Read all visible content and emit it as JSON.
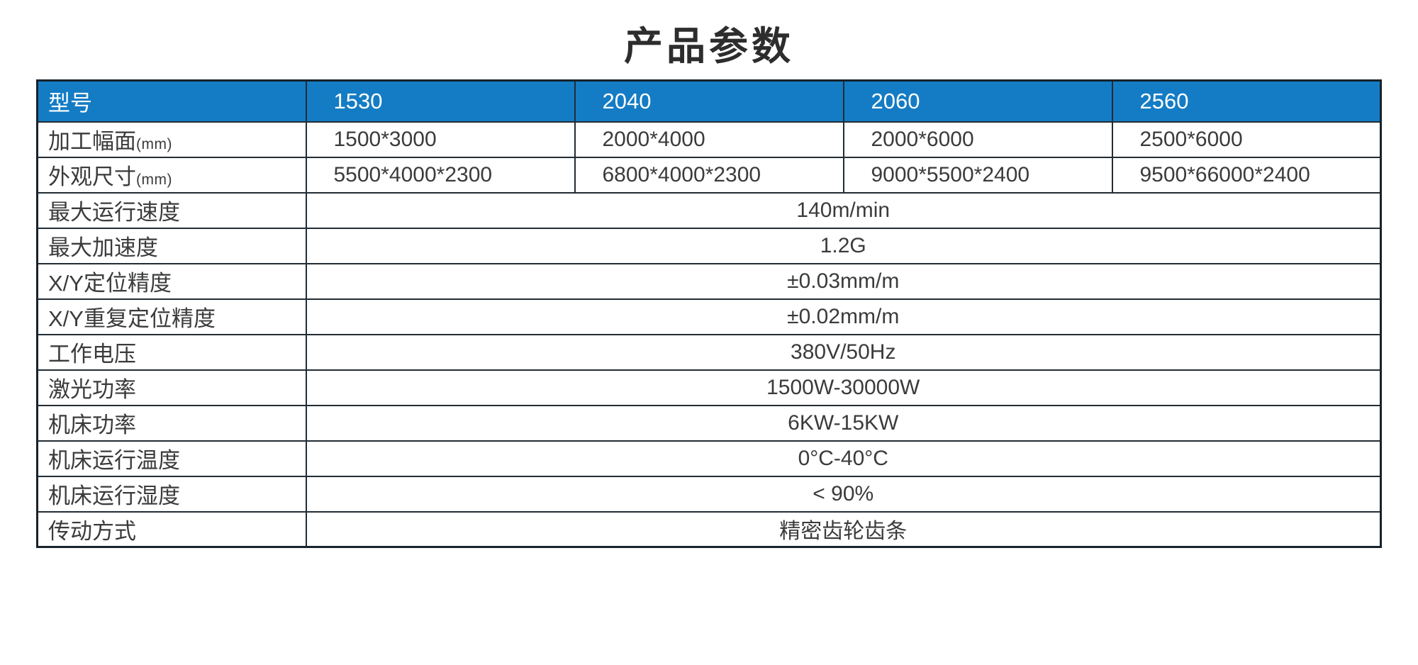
{
  "page": {
    "title": "产品参数"
  },
  "colors": {
    "header_bg": "#147cc4",
    "header_text": "#ffffff",
    "border": "#222c34",
    "body_text": "#3b3b3b"
  },
  "table": {
    "header": {
      "label": "型号",
      "models": [
        "1530",
        "2040",
        "2060",
        "2560"
      ]
    },
    "model_rows": [
      {
        "label": "加工幅面",
        "unit": "(mm)",
        "values": [
          "1500*3000",
          "2000*4000",
          "2000*6000",
          "2500*6000"
        ]
      },
      {
        "label": "外观尺寸",
        "unit": "(mm)",
        "values": [
          "5500*4000*2300",
          "6800*4000*2300",
          "9000*5500*2400",
          "9500*66000*2400"
        ]
      }
    ],
    "merged_rows": [
      {
        "label": "最大运行速度",
        "value": "140m/min"
      },
      {
        "label": "最大加速度",
        "value": "1.2G"
      },
      {
        "label": "X/Y定位精度",
        "value": "±0.03mm/m"
      },
      {
        "label": "X/Y重复定位精度",
        "value": "±0.02mm/m"
      },
      {
        "label": "工作电压",
        "value": "380V/50Hz"
      },
      {
        "label": "激光功率",
        "value": "1500W-30000W"
      },
      {
        "label": "机床功率",
        "value": "6KW-15KW"
      },
      {
        "label": "机床运行温度",
        "value": "0°C-40°C"
      },
      {
        "label": "机床运行湿度",
        "value": "< 90%"
      },
      {
        "label": "传动方式",
        "value": "精密齿轮齿条"
      }
    ]
  }
}
